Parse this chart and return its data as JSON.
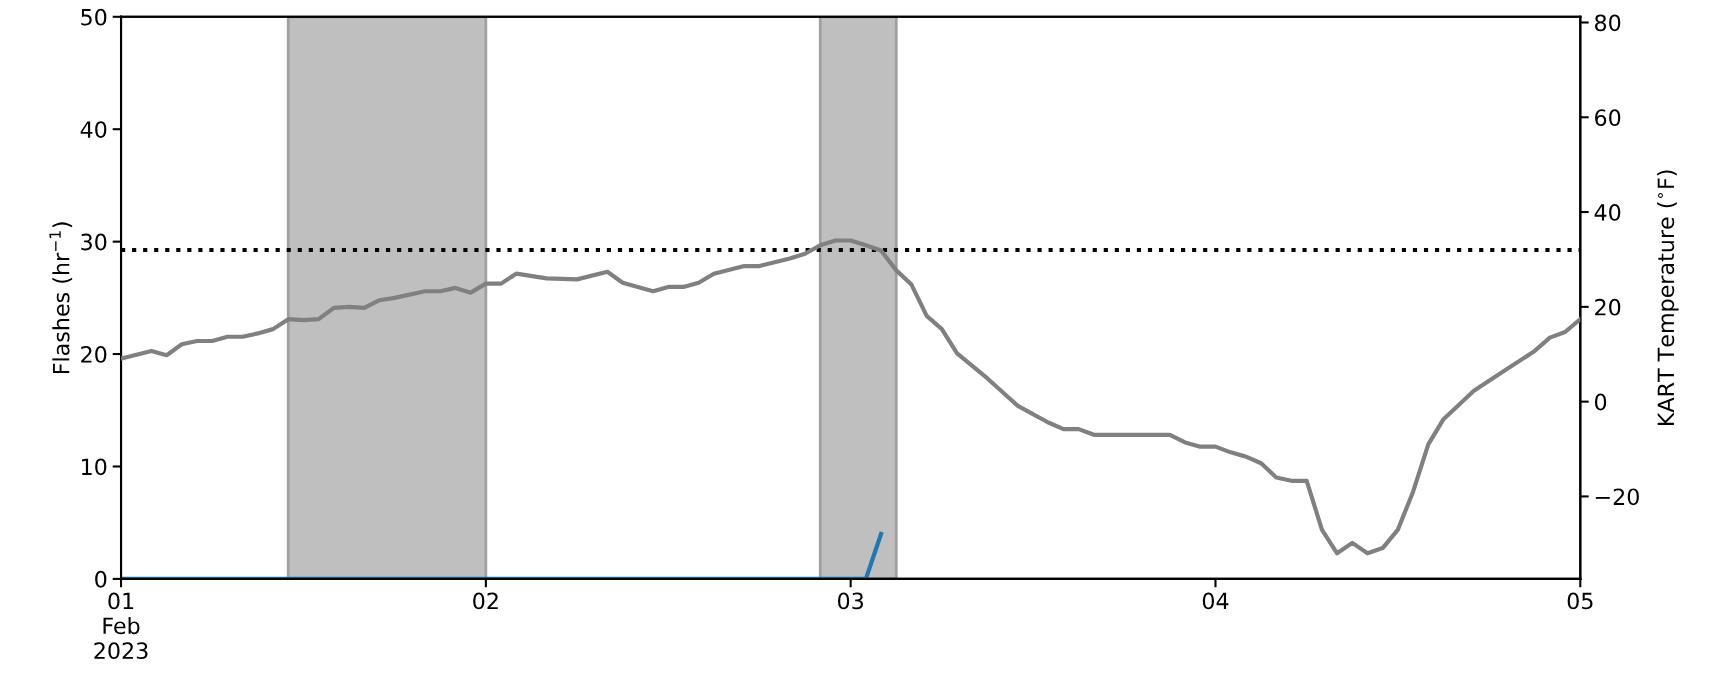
{
  "chart_data": {
    "type": "line",
    "ylabel": "Flashes (hr$^{−1}$)",
    "y2label": "KART Temperature ($^{∘}$F)",
    "xlim": [
      "2023-02-01T00:00",
      "2023-02-05T00:00"
    ],
    "xticks": [
      {
        "value": "2023-02-01",
        "label": "01\nFeb\n2023"
      },
      {
        "value": "2023-02-02",
        "label": "02"
      },
      {
        "value": "2023-02-03",
        "label": "03"
      },
      {
        "value": "2023-02-04",
        "label": "04"
      },
      {
        "value": "2023-02-05",
        "label": "05"
      }
    ],
    "ylim": [
      0,
      50
    ],
    "yticks": [
      0,
      10,
      20,
      30,
      40,
      50
    ],
    "y2lim": [
      -37.4,
      81.2
    ],
    "y2ticks": [
      {
        "value": -20,
        "label": "−20"
      },
      0,
      20,
      40,
      60,
      80
    ],
    "grid": false,
    "legend": false,
    "line_style": "solid",
    "marker": "none",
    "series": [
      {
        "color": "#808080",
        "axis": "y2",
        "x": [
          "2023-02-01T00:00",
          "2023-02-01T02:00",
          "2023-02-01T03:00",
          "2023-02-01T04:00",
          "2023-02-01T05:00",
          "2023-02-01T06:00",
          "2023-02-01T07:00",
          "2023-02-01T08:00",
          "2023-02-01T09:00",
          "2023-02-01T10:00",
          "2023-02-01T11:00",
          "2023-02-01T12:00",
          "2023-02-01T13:00",
          "2023-02-01T14:00",
          "2023-02-01T15:00",
          "2023-02-01T16:00",
          "2023-02-01T17:00",
          "2023-02-01T18:00",
          "2023-02-01T20:00",
          "2023-02-01T21:00",
          "2023-02-01T22:00",
          "2023-02-01T23:00",
          "2023-02-02T00:00",
          "2023-02-02T01:00",
          "2023-02-02T02:00",
          "2023-02-02T04:00",
          "2023-02-02T06:00",
          "2023-02-02T08:00",
          "2023-02-02T09:00",
          "2023-02-02T10:00",
          "2023-02-02T11:00",
          "2023-02-02T12:00",
          "2023-02-02T13:00",
          "2023-02-02T14:00",
          "2023-02-02T15:00",
          "2023-02-02T17:00",
          "2023-02-02T18:00",
          "2023-02-02T20:00",
          "2023-02-02T21:00",
          "2023-02-02T22:00",
          "2023-02-02T23:00",
          "2023-02-03T00:00",
          "2023-02-03T01:00",
          "2023-02-03T02:00",
          "2023-02-03T03:00",
          "2023-02-03T04:00",
          "2023-02-03T05:00",
          "2023-02-03T06:00",
          "2023-02-03T07:00",
          "2023-02-03T09:00",
          "2023-02-03T11:00",
          "2023-02-03T13:00",
          "2023-02-03T14:00",
          "2023-02-03T15:00",
          "2023-02-03T16:00",
          "2023-02-03T21:00",
          "2023-02-03T22:00",
          "2023-02-03T23:00",
          "2023-02-04T00:00",
          "2023-02-04T01:00",
          "2023-02-04T02:00",
          "2023-02-04T03:00",
          "2023-02-04T04:00",
          "2023-02-04T05:00",
          "2023-02-04T06:00",
          "2023-02-04T07:00",
          "2023-02-04T08:00",
          "2023-02-04T09:00",
          "2023-02-04T10:00",
          "2023-02-04T11:00",
          "2023-02-04T12:00",
          "2023-02-04T13:00",
          "2023-02-04T14:00",
          "2023-02-04T15:00",
          "2023-02-04T17:00",
          "2023-02-04T19:00",
          "2023-02-04T21:00",
          "2023-02-04T22:00",
          "2023-02-04T23:00",
          "2023-02-05T00:00"
        ],
        "values": [
          9.1,
          10.7,
          9.8,
          12.1,
          12.8,
          12.8,
          13.7,
          13.7,
          14.4,
          15.3,
          17.4,
          17.2,
          17.4,
          19.8,
          20,
          19.8,
          21.4,
          21.9,
          23.3,
          23.3,
          24,
          23,
          24.9,
          24.9,
          27,
          26,
          25.8,
          27.4,
          25.1,
          24.2,
          23.3,
          24.2,
          24.2,
          25.1,
          27,
          28.6,
          28.6,
          30.2,
          31.2,
          33,
          34,
          34,
          33,
          31.9,
          27.7,
          24.7,
          18.1,
          15.3,
          10.2,
          4.9,
          -0.9,
          -4.4,
          -5.8,
          -5.8,
          -7,
          -7,
          -8.6,
          -9.5,
          -9.5,
          -10.7,
          -11.6,
          -13,
          -16,
          -16.7,
          -16.7,
          -27,
          -32,
          -29.8,
          -32,
          -30.9,
          -27,
          -19,
          -9,
          -3.7,
          2.3,
          6.5,
          10.7,
          13.5,
          14.7,
          17.4
        ]
      },
      {
        "color": "#1f77b4",
        "x": [
          "2023-02-01T00:00",
          "2023-02-03T01:00",
          "2023-02-03T02:00"
        ],
        "values": [
          0,
          0,
          4
        ]
      }
    ],
    "ref_lines": [
      {
        "axis": "y2",
        "value": 32,
        "color": "#000000",
        "line_style": "dotted"
      }
    ],
    "bands": [
      {
        "axis": "x",
        "from": "2023-02-01T11:00",
        "to": "2023-02-02T00:00",
        "color": "#bfbfbf"
      },
      {
        "axis": "x",
        "from": "2023-02-02T22:00",
        "to": "2023-02-03T03:00",
        "color": "#bfbfbf"
      }
    ]
  }
}
